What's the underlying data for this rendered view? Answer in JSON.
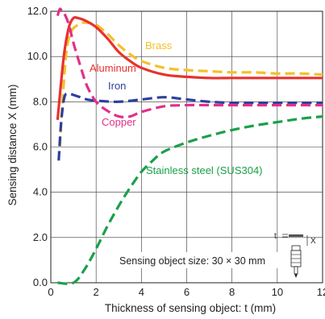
{
  "chart_data": {
    "type": "line",
    "xlabel": "Thickness of sensing object: t (mm)",
    "ylabel": "Sensing distance X (mm)",
    "xlim": [
      0,
      12
    ],
    "ylim": [
      0,
      12
    ],
    "x_ticks": [
      "0",
      "2",
      "4",
      "6",
      "8",
      "10",
      "12"
    ],
    "y_ticks": [
      "0.0",
      "2.0",
      "4.0",
      "6.0",
      "8.0",
      "10.0",
      "12.0"
    ],
    "grid": true,
    "annotation": "Sensing object size: 30 × 30 mm",
    "diagram_labels": {
      "t": "t",
      "x": "X"
    },
    "series": [
      {
        "name": "Brass",
        "color": "#f5c02a",
        "dash": true,
        "x": [
          0.4,
          0.55,
          0.7,
          0.9,
          1.2,
          1.5,
          2.0,
          2.5,
          3.0,
          3.5,
          4.0,
          5.0,
          6.0,
          7.0,
          8.0,
          9.0,
          10.0,
          11.0,
          12.0
        ],
        "y": [
          6.0,
          8.5,
          10.3,
          11.1,
          11.4,
          11.5,
          11.4,
          11.0,
          10.5,
          10.1,
          9.8,
          9.5,
          9.4,
          9.35,
          9.3,
          9.3,
          9.25,
          9.25,
          9.2
        ]
      },
      {
        "name": "Aluminum",
        "color": "#e8322e",
        "dash": false,
        "x": [
          0.3,
          0.45,
          0.6,
          0.8,
          1.0,
          1.2,
          1.5,
          2.0,
          2.5,
          3.0,
          3.5,
          4.0,
          5.0,
          6.0,
          7.0,
          8.0,
          9.0,
          10.0,
          11.0,
          12.0
        ],
        "y": [
          7.2,
          8.8,
          10.2,
          11.3,
          11.7,
          11.7,
          11.6,
          11.3,
          10.8,
          10.2,
          9.8,
          9.5,
          9.2,
          9.1,
          9.05,
          9.05,
          9.05,
          9.05,
          9.05,
          9.05
        ]
      },
      {
        "name": "Iron",
        "color": "#2d3f9e",
        "dash": true,
        "x": [
          0.35,
          0.45,
          0.6,
          0.8,
          1.0,
          1.3,
          1.6,
          2.0,
          3.0,
          4.0,
          5.0,
          6.0,
          7.0,
          8.0,
          9.0,
          10.0,
          11.0,
          12.0
        ],
        "y": [
          5.4,
          7.0,
          8.2,
          8.35,
          8.3,
          8.2,
          8.1,
          8.05,
          8.0,
          8.1,
          8.2,
          8.1,
          8.0,
          7.95,
          7.95,
          7.95,
          7.95,
          7.95
        ]
      },
      {
        "name": "Copper",
        "color": "#e0308a",
        "dash": true,
        "x": [
          0.3,
          0.4,
          0.5,
          0.6,
          0.8,
          1.0,
          1.3,
          1.6,
          2.0,
          2.5,
          3.0,
          3.5,
          4.0,
          5.0,
          6.0,
          7.0,
          8.0,
          9.0,
          10.0,
          11.0,
          12.0
        ],
        "y": [
          11.8,
          12.1,
          12.0,
          11.9,
          11.4,
          10.6,
          9.6,
          8.7,
          8.0,
          7.6,
          7.35,
          7.35,
          7.55,
          7.8,
          7.85,
          7.85,
          7.85,
          7.85,
          7.85,
          7.85,
          7.85
        ]
      },
      {
        "name": "Stainless steel (SUS304)",
        "color": "#1aa04a",
        "dash": true,
        "x": [
          0.3,
          1.0,
          1.5,
          2.0,
          2.5,
          3.0,
          3.5,
          4.0,
          4.5,
          5.0,
          6.0,
          7.0,
          8.0,
          9.0,
          10.0,
          11.0,
          12.0
        ],
        "y": [
          0.0,
          0.0,
          0.6,
          1.5,
          2.5,
          3.4,
          4.2,
          4.9,
          5.4,
          5.8,
          6.2,
          6.5,
          6.75,
          6.95,
          7.1,
          7.25,
          7.35
        ]
      }
    ]
  }
}
